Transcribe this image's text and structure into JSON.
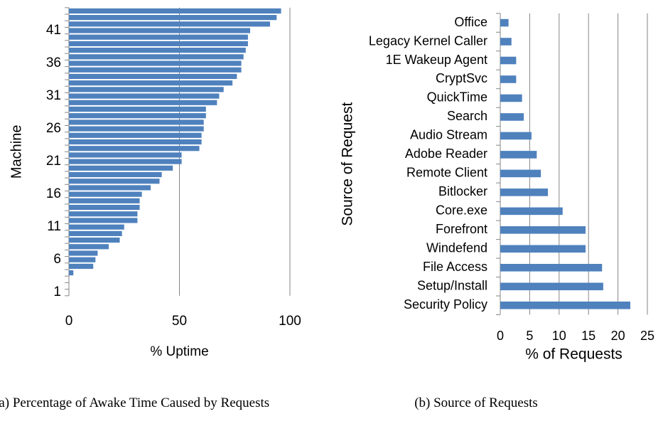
{
  "chart_data": [
    {
      "type": "bar",
      "orientation": "horizontal",
      "caption": "(a) Percentage of Awake Time Caused by Requests",
      "xlabel": "% Uptime",
      "ylabel": "Machine",
      "categories": [
        "1",
        null,
        null,
        null,
        null,
        "6",
        null,
        null,
        null,
        null,
        "11",
        null,
        null,
        null,
        null,
        "16",
        null,
        null,
        null,
        null,
        "21",
        null,
        null,
        null,
        null,
        "26",
        null,
        null,
        null,
        null,
        "31",
        null,
        null,
        null,
        null,
        "36",
        null,
        null,
        null,
        null,
        "41",
        null,
        null,
        null
      ],
      "values": [
        0,
        0,
        0,
        2,
        11,
        12,
        13,
        18,
        23,
        24,
        25,
        31,
        31,
        32,
        32,
        33,
        37,
        41,
        42,
        47,
        51,
        51,
        59,
        60,
        60,
        61,
        61,
        62,
        62,
        67,
        68,
        70,
        74,
        76,
        78,
        78,
        79,
        80,
        81,
        81,
        82,
        91,
        94,
        96
      ],
      "color": "#4f81bd",
      "xlim": [
        0,
        100
      ],
      "xticks": [
        0,
        50,
        100
      ],
      "grid": true
    },
    {
      "type": "bar",
      "orientation": "horizontal",
      "caption": "(b) Source of Requests",
      "xlabel": "% of Requests",
      "ylabel": "Source of Request",
      "categories": [
        "Security Policy",
        "Setup/Install",
        "File Access",
        "Windefend",
        "Forefront",
        "Core.exe",
        "Bitlocker",
        "Remote Client",
        "Adobe Reader",
        "Audio Stream",
        "Search",
        "QuickTime",
        "CryptSvc",
        "1E Wakeup Agent",
        "Legacy Kernel Caller",
        "Office"
      ],
      "values": [
        22.1,
        17.5,
        17.3,
        14.5,
        14.5,
        10.6,
        8.1,
        6.9,
        6.2,
        5.3,
        4.0,
        3.7,
        2.7,
        2.7,
        1.9,
        1.4
      ],
      "color": "#4f81bd",
      "xlim": [
        0,
        25
      ],
      "xticks": [
        0,
        5,
        10,
        15,
        20,
        25
      ],
      "grid": true
    }
  ]
}
